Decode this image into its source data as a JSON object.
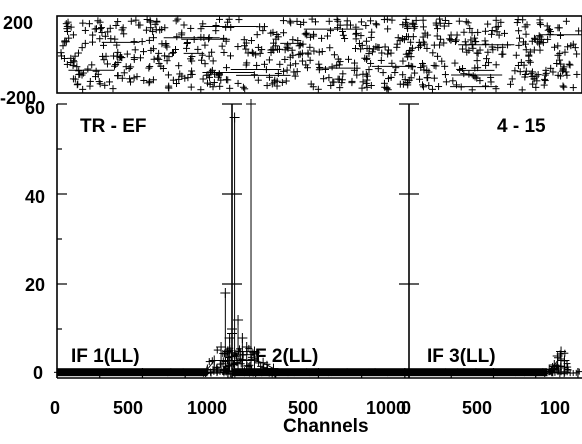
{
  "chart_data": {
    "type": "scatter",
    "xlabel": "Channels",
    "ylabel": "",
    "title": "",
    "baseline_title": "TR - EF",
    "scan_label": "4 - 15",
    "phase_panel": {
      "ylim": [
        -200,
        200
      ],
      "yticks": [
        "200",
        "-200"
      ]
    },
    "amplitude_panel": {
      "ylim": [
        0,
        60
      ],
      "yticks": [
        "0",
        "20",
        "40",
        "60"
      ]
    },
    "panels": [
      {
        "if_label": "IF 1(LL)",
        "xlim": [
          0,
          1024
        ],
        "xticks": [
          "0",
          "500",
          "1000"
        ],
        "amplitude": {
          "baseline": 0.4,
          "baseline_end_channel": 880,
          "peaks": [
            {
              "channel": 880,
              "value": 1.0
            },
            {
              "channel": 920,
              "value": 3.0
            },
            {
              "channel": 960,
              "value": 6.0
            },
            {
              "channel": 985,
              "value": 18.0
            },
            {
              "channel": 1000,
              "value": 5.0
            },
            {
              "channel": 1010,
              "value": 8.0
            },
            {
              "channel": 1024,
              "value": 10.0
            }
          ]
        }
      },
      {
        "if_label": "F 2(LL)",
        "xlim": [
          0,
          1024
        ],
        "xticks": [
          "500",
          "1000"
        ],
        "amplitude": {
          "baseline": 0.4,
          "peaks": [
            {
              "channel": 0,
              "value": 9.0
            },
            {
              "channel": 15,
              "value": 57.0
            },
            {
              "channel": 35,
              "value": 12.0
            },
            {
              "channel": 60,
              "value": 8.0
            },
            {
              "channel": 85,
              "value": 6.0
            },
            {
              "channel": 110,
              "value": 60.0
            },
            {
              "channel": 130,
              "value": 5.0
            },
            {
              "channel": 180,
              "value": 2.5
            },
            {
              "channel": 240,
              "value": 1.2
            }
          ]
        }
      },
      {
        "if_label": "IF 3(LL)",
        "xlim": [
          0,
          1024
        ],
        "xticks": [
          "500",
          "100"
        ],
        "amplitude": {
          "baseline": 0.4,
          "baseline_end_channel": 820,
          "peaks": [
            {
              "channel": 830,
              "value": 1.0
            },
            {
              "channel": 860,
              "value": 2.0
            },
            {
              "channel": 880,
              "value": 4.0
            },
            {
              "channel": 900,
              "value": 5.0
            },
            {
              "channel": 920,
              "value": 3.0
            }
          ]
        }
      }
    ]
  }
}
